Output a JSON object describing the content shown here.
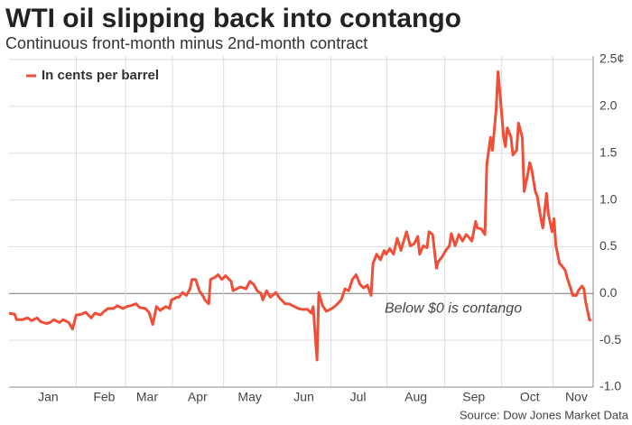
{
  "chart_data": {
    "type": "line",
    "title": "WTI oil slipping back into contango",
    "subtitle": "Continuous front-month minus 2nd-month contract",
    "annotation": "Below $0 is contango",
    "source": "Source: Dow Jones Market Data",
    "x": [
      -6,
      -3,
      -2,
      1,
      4,
      6,
      9,
      11,
      14,
      16,
      18,
      21,
      23,
      26,
      28,
      30,
      33,
      35,
      38,
      40,
      43,
      45,
      47,
      50,
      52,
      55,
      57,
      59,
      62,
      64,
      67,
      69,
      71,
      73,
      75,
      78,
      80,
      81,
      84,
      85,
      87,
      89,
      91,
      92,
      94,
      96,
      98,
      99,
      101,
      102,
      104,
      106,
      108,
      110,
      113,
      114,
      116,
      118,
      121,
      123,
      125,
      127,
      129,
      130,
      132,
      134,
      137,
      139,
      142,
      144,
      146,
      149,
      151,
      154,
      156,
      157,
      159,
      160,
      162,
      164,
      167,
      169,
      172,
      174,
      176,
      178,
      180,
      182,
      184,
      186,
      188,
      189,
      191,
      193,
      195,
      196,
      198,
      200,
      202,
      204,
      205,
      207,
      209,
      211,
      213,
      214,
      216,
      218,
      219,
      221,
      223,
      224,
      226,
      228,
      230,
      231,
      233,
      235,
      237,
      239,
      240,
      242,
      244,
      245,
      247,
      249,
      250,
      252,
      253,
      255,
      256,
      257,
      259,
      260,
      261,
      263,
      264,
      266,
      267,
      269,
      270,
      272,
      273,
      274,
      276,
      277,
      279,
      280,
      282,
      283,
      285,
      286,
      287,
      289,
      290,
      292,
      293,
      295,
      296,
      298,
      299,
      301,
      302,
      303,
      305,
      306
    ],
    "series": [
      {
        "name": "In cents per barrel",
        "color": "#f04e37",
        "values": [
          -0.21,
          -0.22,
          -0.28,
          -0.28,
          -0.26,
          -0.29,
          -0.26,
          -0.3,
          -0.32,
          -0.31,
          -0.28,
          -0.31,
          -0.28,
          -0.31,
          -0.38,
          -0.23,
          -0.22,
          -0.2,
          -0.26,
          -0.21,
          -0.23,
          -0.19,
          -0.16,
          -0.16,
          -0.13,
          -0.16,
          -0.14,
          -0.13,
          -0.11,
          -0.15,
          -0.16,
          -0.2,
          -0.33,
          -0.14,
          -0.18,
          -0.14,
          -0.16,
          -0.07,
          -0.04,
          -0.04,
          0.01,
          -0.02,
          0.05,
          0.15,
          0.15,
          0.03,
          -0.03,
          -0.07,
          -0.11,
          0.15,
          0.17,
          0.2,
          0.15,
          0.19,
          0.13,
          0.03,
          0.05,
          0.07,
          0.05,
          0.13,
          0.1,
          0.03,
          0.0,
          -0.07,
          0.03,
          -0.04,
          0.01,
          -0.05,
          -0.11,
          -0.11,
          -0.13,
          -0.16,
          -0.17,
          -0.17,
          -0.21,
          -0.14,
          -0.71,
          0.01,
          -0.13,
          -0.19,
          -0.16,
          -0.13,
          -0.07,
          0.05,
          0.03,
          0.15,
          0.2,
          0.1,
          0.06,
          0.09,
          -0.02,
          0.32,
          0.42,
          0.36,
          0.46,
          0.42,
          0.48,
          0.42,
          0.59,
          0.46,
          0.53,
          0.66,
          0.51,
          0.53,
          0.61,
          0.42,
          0.51,
          0.49,
          0.66,
          0.63,
          0.27,
          0.34,
          0.39,
          0.46,
          0.51,
          0.64,
          0.51,
          0.63,
          0.56,
          0.63,
          0.61,
          0.56,
          0.77,
          0.7,
          0.69,
          0.63,
          1.38,
          1.67,
          1.53,
          1.96,
          2.37,
          2.16,
          1.67,
          1.57,
          1.77,
          1.67,
          1.48,
          1.53,
          1.82,
          1.67,
          1.09,
          1.28,
          1.4,
          1.33,
          1.09,
          1.04,
          0.8,
          0.7,
          1.07,
          0.85,
          0.66,
          0.8,
          0.51,
          0.32,
          0.3,
          0.25,
          0.17,
          0.05,
          -0.02,
          -0.02,
          0.03,
          0.08,
          0.05,
          -0.09,
          -0.28,
          -0.29
        ]
      }
    ],
    "xlim": [
      -6,
      307
    ],
    "xticks": [
      {
        "value": 15,
        "label": "Jan"
      },
      {
        "value": 45,
        "label": "Feb"
      },
      {
        "value": 68,
        "label": "Mar"
      },
      {
        "value": 95,
        "label": "Apr"
      },
      {
        "value": 123,
        "label": "May"
      },
      {
        "value": 152,
        "label": "Jun"
      },
      {
        "value": 181,
        "label": "Jul"
      },
      {
        "value": 212,
        "label": "Aug"
      },
      {
        "value": 243,
        "label": "Sep"
      },
      {
        "value": 273,
        "label": "Oct"
      },
      {
        "value": 298,
        "label": "Nov"
      }
    ],
    "ylim": [
      -1,
      2.5
    ],
    "yticks": [
      {
        "value": -1,
        "label": "-1.0"
      },
      {
        "value": -0.5,
        "label": "-0.5"
      },
      {
        "value": 0,
        "label": "0.0"
      },
      {
        "value": 0.5,
        "label": "0.5"
      },
      {
        "value": 1,
        "label": "1.0"
      },
      {
        "value": 1.5,
        "label": "1.5"
      },
      {
        "value": 2,
        "label": "2.0"
      },
      {
        "value": 2.5,
        "label": "2.5¢"
      }
    ],
    "grid": true,
    "legend": "top-left"
  }
}
